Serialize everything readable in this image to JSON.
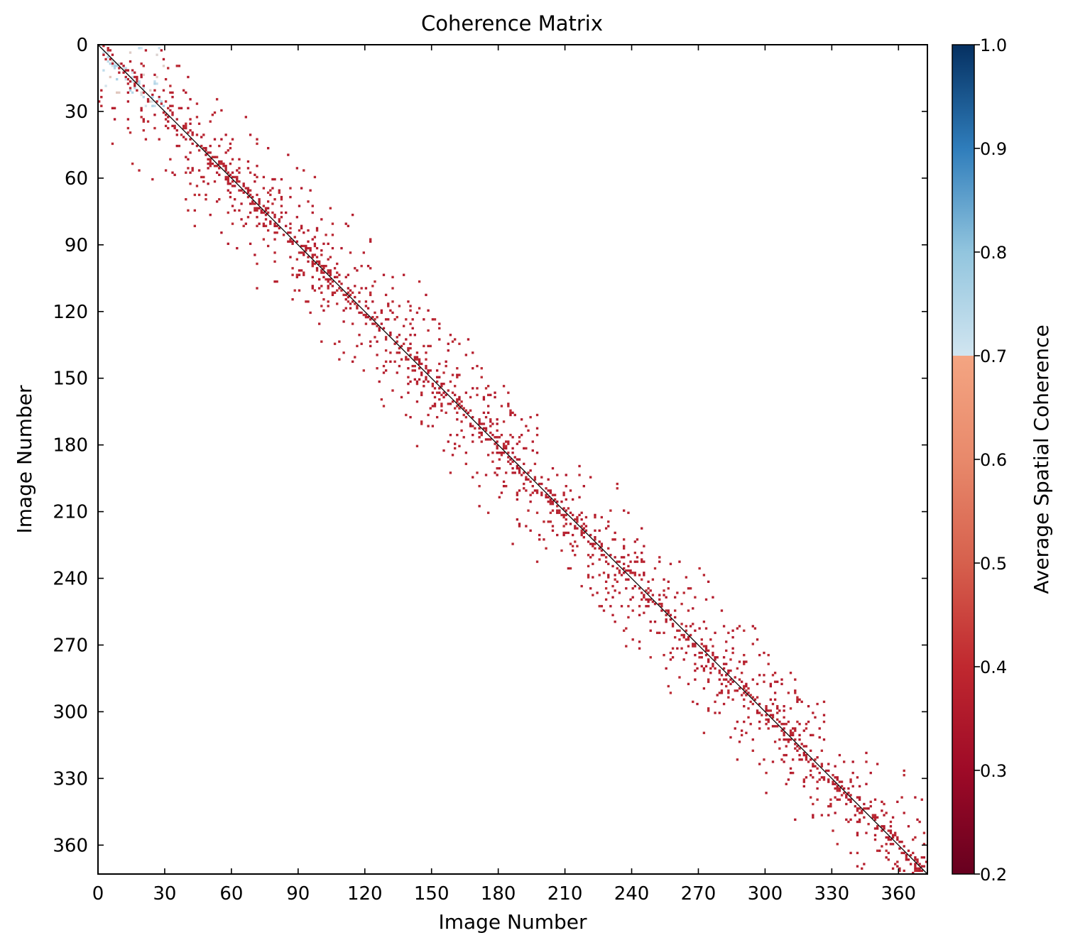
{
  "chart_data": {
    "type": "heatmap",
    "title": "Coherence Matrix",
    "xlabel": "Image Number",
    "ylabel": "Image Number",
    "matrix_size": 373,
    "x_ticks": [
      0,
      30,
      60,
      90,
      120,
      150,
      180,
      210,
      240,
      270,
      300,
      330,
      360
    ],
    "y_ticks": [
      0,
      30,
      60,
      90,
      120,
      150,
      180,
      210,
      240,
      270,
      300,
      330,
      360
    ],
    "x_tick_labels": [
      "0",
      "30",
      "60",
      "90",
      "120",
      "150",
      "180",
      "210",
      "240",
      "270",
      "300",
      "330",
      "360"
    ],
    "y_tick_labels": [
      "0",
      "30",
      "60",
      "90",
      "120",
      "150",
      "180",
      "210",
      "240",
      "270",
      "300",
      "330",
      "360"
    ],
    "xlim": [
      0,
      373
    ],
    "ylim": [
      373,
      0
    ],
    "grid": false,
    "y_axis_inverted": true,
    "band_half_width_images": 38,
    "diagonal_value": 1.0,
    "off_diagonal_typical_value": 0.3,
    "colorbar": {
      "label": "Average Spatial Coherence",
      "range": [
        0.2,
        1.0
      ],
      "ticks": [
        0.2,
        0.3,
        0.4,
        0.5,
        0.6,
        0.7,
        0.8,
        0.9,
        1.0
      ],
      "tick_labels": [
        "0.2",
        "0.3",
        "0.4",
        "0.5",
        "0.6",
        "0.7",
        "0.8",
        "0.9",
        "1.0"
      ],
      "colormap": "RdBu",
      "colors": [
        "#67001f",
        "#b2182b",
        "#d6604d",
        "#f4a582",
        "#d1e5f0",
        "#92c5de",
        "#4393c3",
        "#2166ac",
        "#053061"
      ]
    }
  }
}
